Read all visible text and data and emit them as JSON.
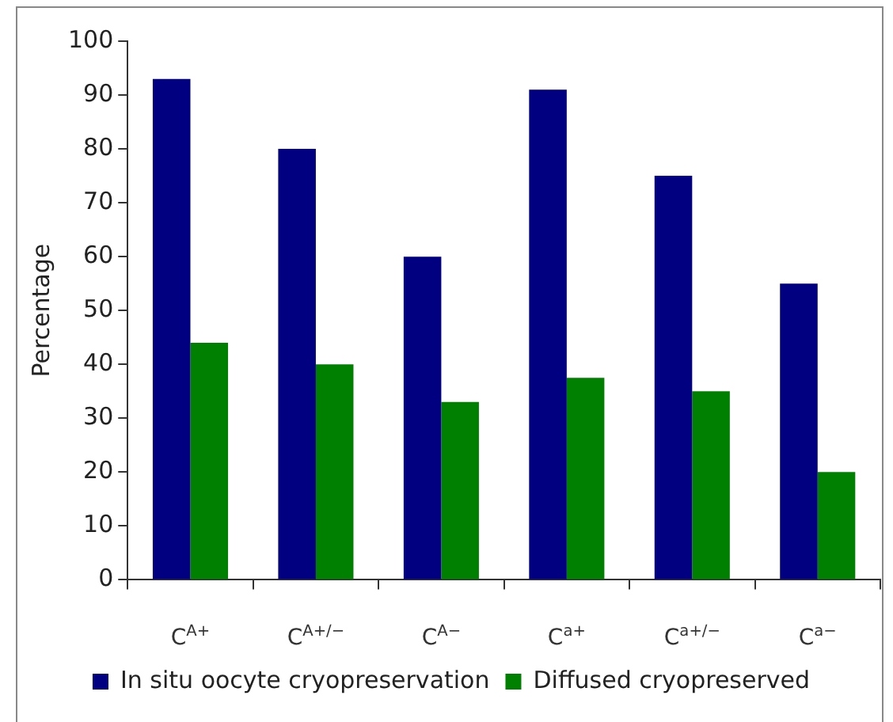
{
  "chart_data": {
    "type": "bar",
    "ylabel": "Percentage",
    "categories": [
      "C$^{A+}$",
      "C$^{A+/−}$",
      "C$^{A−}$",
      "C$^{a+}$",
      "C$^{a+/−}$",
      "C$^{a−}$"
    ],
    "series": [
      {
        "name": "In situ oocyte cryopreservation",
        "color": "#000080",
        "values": [
          93,
          80,
          60,
          91,
          75,
          55
        ]
      },
      {
        "name": "Diffused cryopreserved",
        "color": "#008000",
        "values": [
          44,
          40,
          33,
          37.5,
          35,
          20
        ]
      }
    ],
    "ylim": [
      0,
      100
    ],
    "yticks": [
      0,
      10,
      20,
      30,
      40,
      50,
      60,
      70,
      80,
      90,
      100
    ],
    "grid": false,
    "legend": "bottom"
  }
}
